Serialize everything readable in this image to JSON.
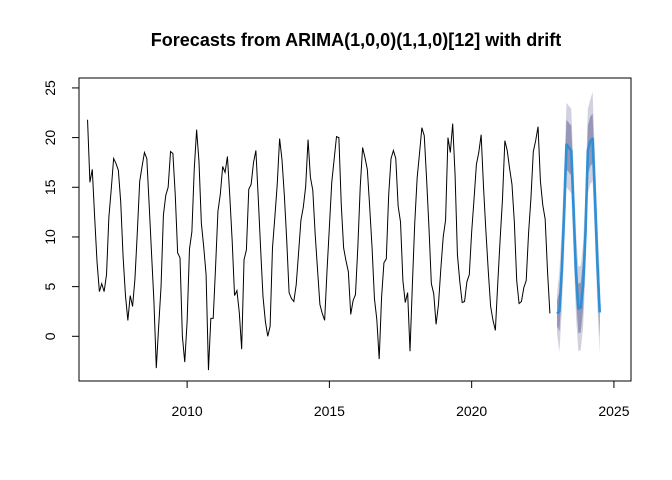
{
  "chart_data": {
    "type": "line",
    "title": "Forecasts from ARIMA(1,0,0)(1,1,0)[12] with drift",
    "xlabel": "",
    "ylabel": "",
    "xlim": [
      2006.2,
      2025.6
    ],
    "ylim": [
      -4.5,
      26
    ],
    "x_ticks": [
      2010,
      2015,
      2020,
      2025
    ],
    "y_ticks": [
      0,
      5,
      10,
      15,
      20,
      25
    ],
    "x_tick_labels": [
      "2010",
      "2015",
      "2020",
      "2025"
    ],
    "y_tick_labels": [
      "0",
      "5",
      "10",
      "15",
      "20",
      "25"
    ],
    "grid": false,
    "colors": {
      "observed": "#000000",
      "forecast": "#2e8fd6",
      "band80": "#9696b9",
      "band95": "#d2d2df"
    },
    "observed": {
      "start": 2006.5,
      "frequency": 12,
      "values": [
        21.8,
        15.5,
        16.8,
        12.0,
        7.5,
        4.5,
        5.3,
        4.5,
        6.2,
        12.0,
        14.8,
        17.9,
        17.4,
        16.7,
        13.5,
        8.0,
        4.1,
        1.6,
        4.1,
        3.0,
        5.8,
        10.5,
        15.6,
        17.1,
        18.5,
        17.9,
        13.2,
        8.3,
        3.5,
        -3.2,
        1.0,
        5.0,
        12.2,
        14.2,
        15.0,
        18.6,
        18.4,
        14.2,
        8.4,
        7.9,
        0.0,
        -2.6,
        1.5,
        8.8,
        10.5,
        16.8,
        20.8,
        17.6,
        11.4,
        9.0,
        6.2,
        -3.4,
        1.8,
        1.8,
        7.0,
        12.6,
        14.3,
        17.1,
        16.5,
        18.1,
        14.1,
        9.6,
        4.1,
        4.6,
        2.4,
        -1.3,
        7.7,
        8.7,
        14.8,
        15.3,
        17.5,
        18.7,
        13.9,
        8.8,
        4.0,
        1.5,
        0.0,
        1.0,
        8.9,
        12.0,
        15.3,
        19.9,
        17.8,
        14.2,
        9.7,
        4.4,
        3.8,
        3.5,
        5.2,
        8.4,
        11.7,
        13.0,
        15.1,
        19.8,
        16.0,
        14.7,
        10.3,
        6.7,
        3.2,
        2.3,
        1.6,
        6.6,
        11.0,
        15.5,
        17.8,
        20.1,
        20.0,
        13.3,
        8.9,
        7.6,
        6.5,
        2.2,
        3.6,
        4.2,
        9.0,
        15.0,
        19.0,
        18.0,
        16.8,
        13.0,
        8.9,
        3.8,
        1.7,
        -2.3,
        3.9,
        7.4,
        7.8,
        14.2,
        17.9,
        18.7,
        17.9,
        13.1,
        11.5,
        5.6,
        3.4,
        4.4,
        -1.5,
        5.2,
        11.4,
        15.9,
        18.4,
        21.0,
        20.2,
        15.8,
        10.9,
        5.3,
        4.3,
        1.2,
        3.2,
        6.8,
        10.0,
        11.7,
        20.0,
        18.5,
        21.4,
        16.3,
        8.2,
        5.5,
        3.4,
        3.5,
        5.5,
        6.2,
        10.5,
        13.8,
        17.3,
        18.5,
        20.3,
        15.0,
        10.6,
        6.6,
        3.0,
        1.6,
        0.6,
        5.3,
        9.7,
        13.8,
        19.7,
        18.7,
        16.9,
        15.3,
        11.5,
        5.6,
        3.3,
        3.5,
        4.9,
        5.6,
        10.4,
        13.9,
        18.6,
        19.7,
        21.1,
        15.6,
        13.2,
        11.8,
        6.5,
        2.3
      ]
    },
    "forecast": {
      "start": 2023.0,
      "frequency": 12,
      "mean": [
        2.3,
        2.5,
        6.6,
        12.5,
        19.3,
        19.0,
        18.7,
        12.6,
        6.3,
        2.8,
        2.9,
        5.2,
        10.4,
        18.7,
        19.6,
        19.9,
        14.0,
        7.5,
        2.4
      ],
      "lo80": [
        1.0,
        0.5,
        4.2,
        10.0,
        16.8,
        16.5,
        16.2,
        10.1,
        3.8,
        0.3,
        0.4,
        2.7,
        7.9,
        16.2,
        17.1,
        17.4,
        11.5,
        5.0,
        -0.1
      ],
      "hi80": [
        3.6,
        4.5,
        9.0,
        15.0,
        21.8,
        21.5,
        21.2,
        15.1,
        8.8,
        5.3,
        5.4,
        7.7,
        12.9,
        21.2,
        22.1,
        22.4,
        16.5,
        10.0,
        4.9
      ],
      "lo95": [
        0.3,
        -1.6,
        2.4,
        8.3,
        15.0,
        14.7,
        14.4,
        8.3,
        2.0,
        -1.5,
        -1.4,
        0.9,
        6.1,
        14.4,
        15.3,
        15.6,
        9.7,
        3.2,
        -1.9
      ],
      "hi95": [
        4.3,
        6.6,
        10.8,
        16.7,
        23.5,
        23.2,
        22.9,
        16.8,
        10.5,
        7.0,
        7.1,
        9.4,
        14.6,
        22.9,
        23.8,
        24.6,
        18.2,
        11.7,
        6.6
      ]
    }
  }
}
